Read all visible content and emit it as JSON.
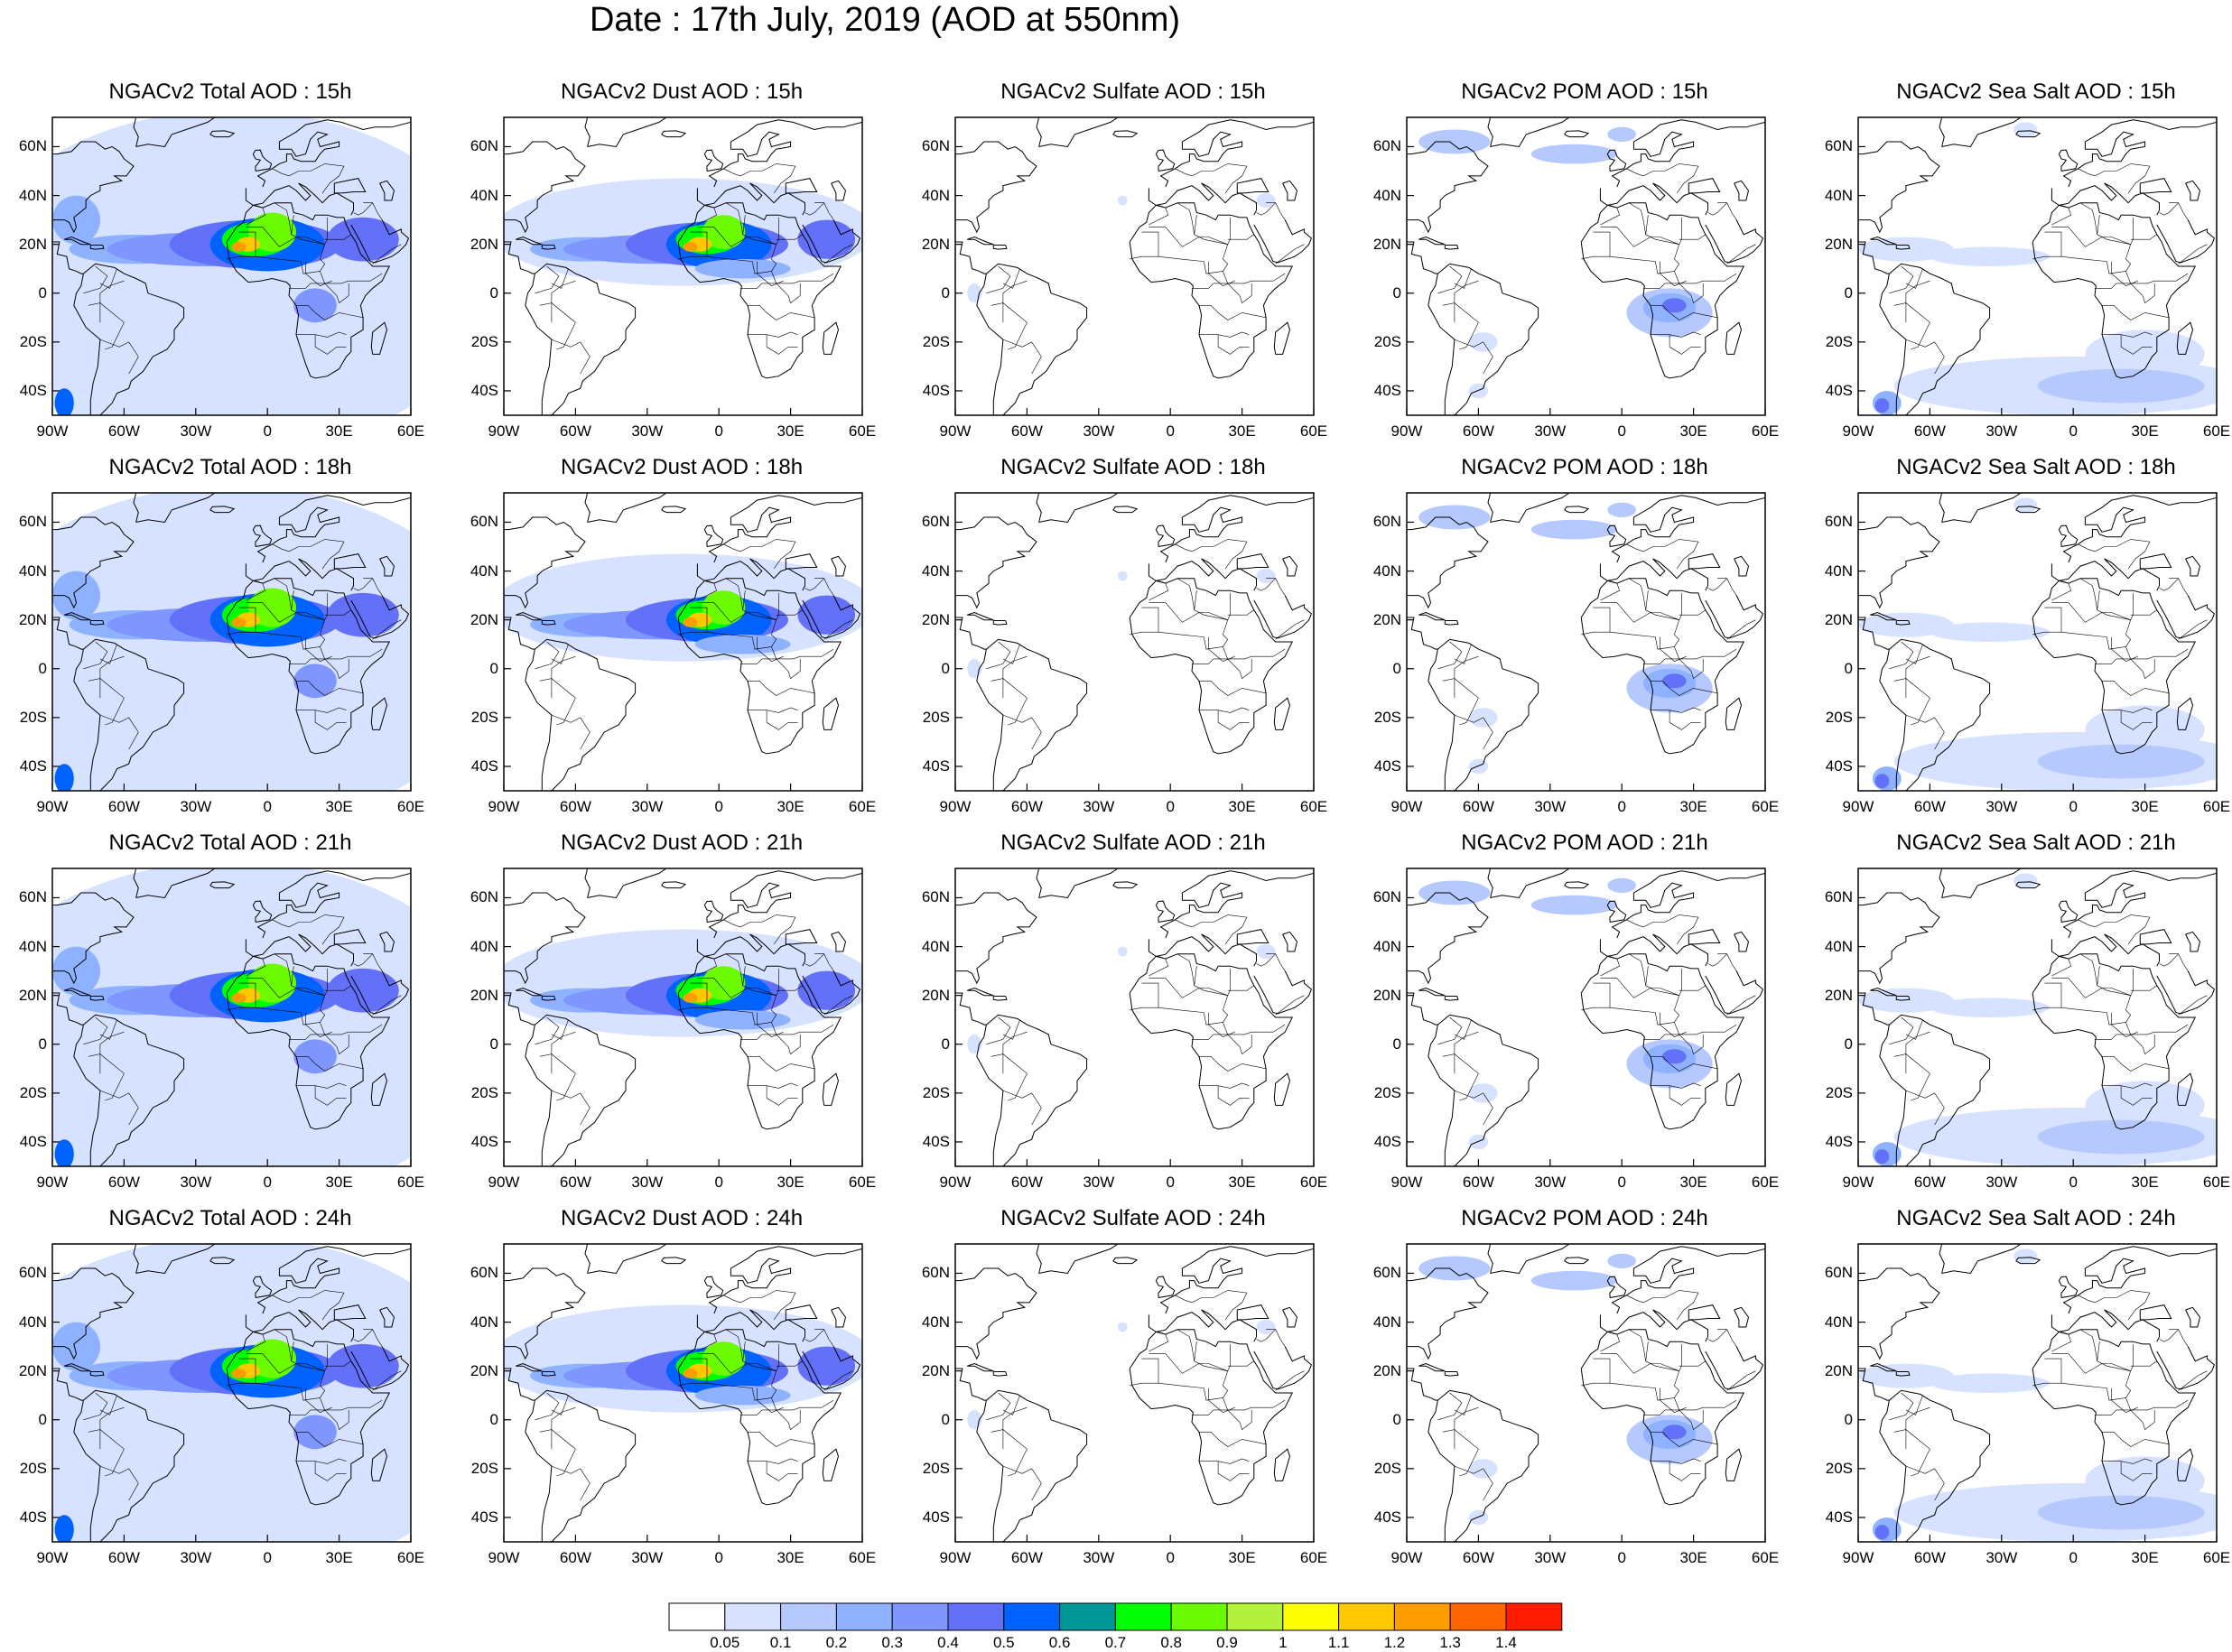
{
  "title": "Date : 17th July, 2019 (AOD at 550nm)",
  "lat_tick_labels": [
    "60N",
    "40N",
    "20N",
    "0",
    "20S",
    "40S"
  ],
  "lon_tick_labels": [
    "90W",
    "60W",
    "30W",
    "0",
    "30E",
    "60E"
  ],
  "panels": [
    {
      "title": "NGACv2 Total AOD : 15h",
      "field": "total"
    },
    {
      "title": "NGACv2 Dust AOD : 15h",
      "field": "dust"
    },
    {
      "title": "NGACv2 Sulfate AOD : 15h",
      "field": "sulfate"
    },
    {
      "title": "NGACv2 POM AOD : 15h",
      "field": "pom"
    },
    {
      "title": "NGACv2 Sea Salt AOD : 15h",
      "field": "seasalt"
    },
    {
      "title": "NGACv2 Total AOD : 18h",
      "field": "total"
    },
    {
      "title": "NGACv2 Dust AOD : 18h",
      "field": "dust"
    },
    {
      "title": "NGACv2 Sulfate AOD : 18h",
      "field": "sulfate"
    },
    {
      "title": "NGACv2 POM AOD : 18h",
      "field": "pom"
    },
    {
      "title": "NGACv2 Sea Salt AOD : 18h",
      "field": "seasalt"
    },
    {
      "title": "NGACv2 Total AOD : 21h",
      "field": "total"
    },
    {
      "title": "NGACv2 Dust AOD : 21h",
      "field": "dust"
    },
    {
      "title": "NGACv2 Sulfate AOD : 21h",
      "field": "sulfate"
    },
    {
      "title": "NGACv2 POM AOD : 21h",
      "field": "pom"
    },
    {
      "title": "NGACv2 Sea Salt AOD : 21h",
      "field": "seasalt"
    },
    {
      "title": "NGACv2 Total AOD : 24h",
      "field": "total"
    },
    {
      "title": "NGACv2 Dust AOD : 24h",
      "field": "dust"
    },
    {
      "title": "NGACv2 Sulfate AOD : 24h",
      "field": "sulfate"
    },
    {
      "title": "NGACv2 POM AOD : 24h",
      "field": "pom"
    },
    {
      "title": "NGACv2 Sea Salt  AOD : 24h",
      "field": "seasalt"
    }
  ],
  "colorbar": {
    "labels": [
      "0.05",
      "0.1",
      "0.2",
      "0.3",
      "0.4",
      "0.5",
      "0.6",
      "0.7",
      "0.8",
      "0.9",
      "1",
      "1.1",
      "1.2",
      "1.3",
      "1.4"
    ],
    "colors": [
      "#ffffff",
      "#d6e2ff",
      "#b5c9ff",
      "#8eb2ff",
      "#7f96ff",
      "#6370f8",
      "#0062ff",
      "#009796",
      "#00ff00",
      "#6bfb00",
      "#b4f13c",
      "#ffff00",
      "#ffc800",
      "#ff9c00",
      "#ff6600",
      "#ff1d00"
    ]
  }
}
